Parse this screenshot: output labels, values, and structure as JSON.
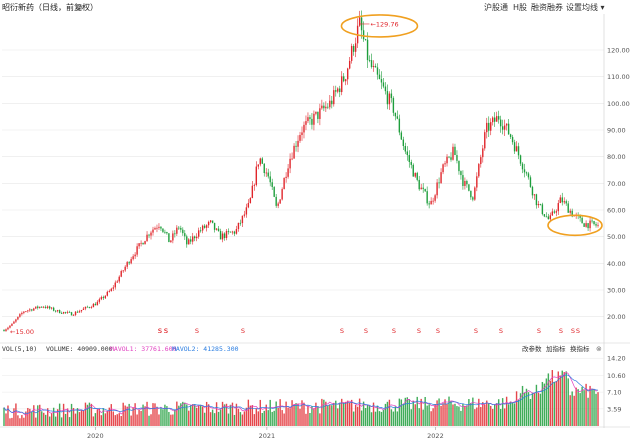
{
  "header": {
    "title": "昭衍新药（日线，前复权）",
    "toolbar": [
      "沪股通",
      "H股",
      "融资融券",
      "设置均线 ▾"
    ],
    "settings_icon": "gear-icon"
  },
  "volume_header": {
    "indicator": "VOL(5,10)",
    "volume": "VOLUME: 40909.000",
    "ma1": "MAVOL1: 37761.600",
    "ma2": "MAVOL2: 41285.300",
    "tools": [
      "改参数",
      "加指标",
      "换指标"
    ],
    "close_icon": "close-icon"
  },
  "colors": {
    "up": "#e0262b",
    "down": "#1e9e3c",
    "ma1": "#e040c0",
    "ma2": "#2a7de1",
    "annotation": "#f0a020",
    "grid": "#e8e8e8",
    "axis_text": "#555555"
  },
  "chart_data": [
    {
      "type": "candlestick",
      "title": "昭衍新药（日线，前复权）",
      "y_ticks": [
        "120.00",
        "110.00",
        "100.00",
        "90.00",
        "80.00",
        "70.00",
        "60.00",
        "50.00",
        "40.00",
        "30.00",
        "20.00"
      ],
      "ylim": [
        12,
        132
      ],
      "x_ticks": [
        "2020",
        "2021",
        "2022"
      ],
      "grid": true,
      "price_path": [
        [
          0,
          15.0
        ],
        [
          8,
          17.0
        ],
        [
          20,
          22.0
        ],
        [
          40,
          24.0
        ],
        [
          55,
          22.0
        ],
        [
          70,
          21.0
        ],
        [
          95,
          25.0
        ],
        [
          110,
          30.0
        ],
        [
          130,
          42.0
        ],
        [
          150,
          52.0
        ],
        [
          160,
          55.0
        ],
        [
          170,
          48.0
        ],
        [
          180,
          54.0
        ],
        [
          188,
          47.0
        ],
        [
          200,
          52.0
        ],
        [
          212,
          55.0
        ],
        [
          222,
          50.0
        ],
        [
          238,
          52.0
        ],
        [
          252,
          62.0
        ],
        [
          262,
          80.0
        ],
        [
          272,
          72.0
        ],
        [
          280,
          60.0
        ],
        [
          292,
          78.0
        ],
        [
          305,
          90.0
        ],
        [
          320,
          95.0
        ],
        [
          335,
          100.0
        ],
        [
          350,
          110.0
        ],
        [
          365,
          129.76
        ],
        [
          375,
          115.0
        ],
        [
          390,
          105.0
        ],
        [
          400,
          98.0
        ],
        [
          412,
          82.0
        ],
        [
          425,
          70.0
        ],
        [
          438,
          62.0
        ],
        [
          450,
          75.0
        ],
        [
          462,
          82.0
        ],
        [
          472,
          70.0
        ],
        [
          482,
          65.0
        ],
        [
          495,
          90.0
        ],
        [
          508,
          95.0
        ],
        [
          520,
          88.0
        ],
        [
          535,
          75.0
        ],
        [
          548,
          62.0
        ],
        [
          560,
          56.0
        ],
        [
          572,
          64.0
        ],
        [
          585,
          58.0
        ],
        [
          595,
          55.0
        ],
        [
          612,
          54.0
        ]
      ],
      "annotations": [
        {
          "label": "129.76",
          "value": 129.76,
          "highlight": "high"
        },
        {
          "label": "15.00",
          "value": 15.0,
          "highlight": "low"
        }
      ],
      "low_zone_highlight": {
        "value": 55.0
      },
      "event_markers": [
        "S",
        "S",
        "S",
        "S",
        "S",
        "S",
        "S",
        "S",
        "S",
        "S",
        "S",
        "S",
        "S",
        "S",
        "S",
        "S",
        "S"
      ]
    },
    {
      "type": "bar",
      "title": "VOL(5,10)",
      "y_ticks": [
        "14.20",
        "10.60",
        "7.10",
        "3.59"
      ],
      "series": [
        {
          "name": "VOLUME",
          "last": 40909.0
        },
        {
          "name": "MAVOL1",
          "last": 37761.6
        },
        {
          "name": "MAVOL2",
          "last": 41285.3
        }
      ],
      "units": "万"
    }
  ]
}
